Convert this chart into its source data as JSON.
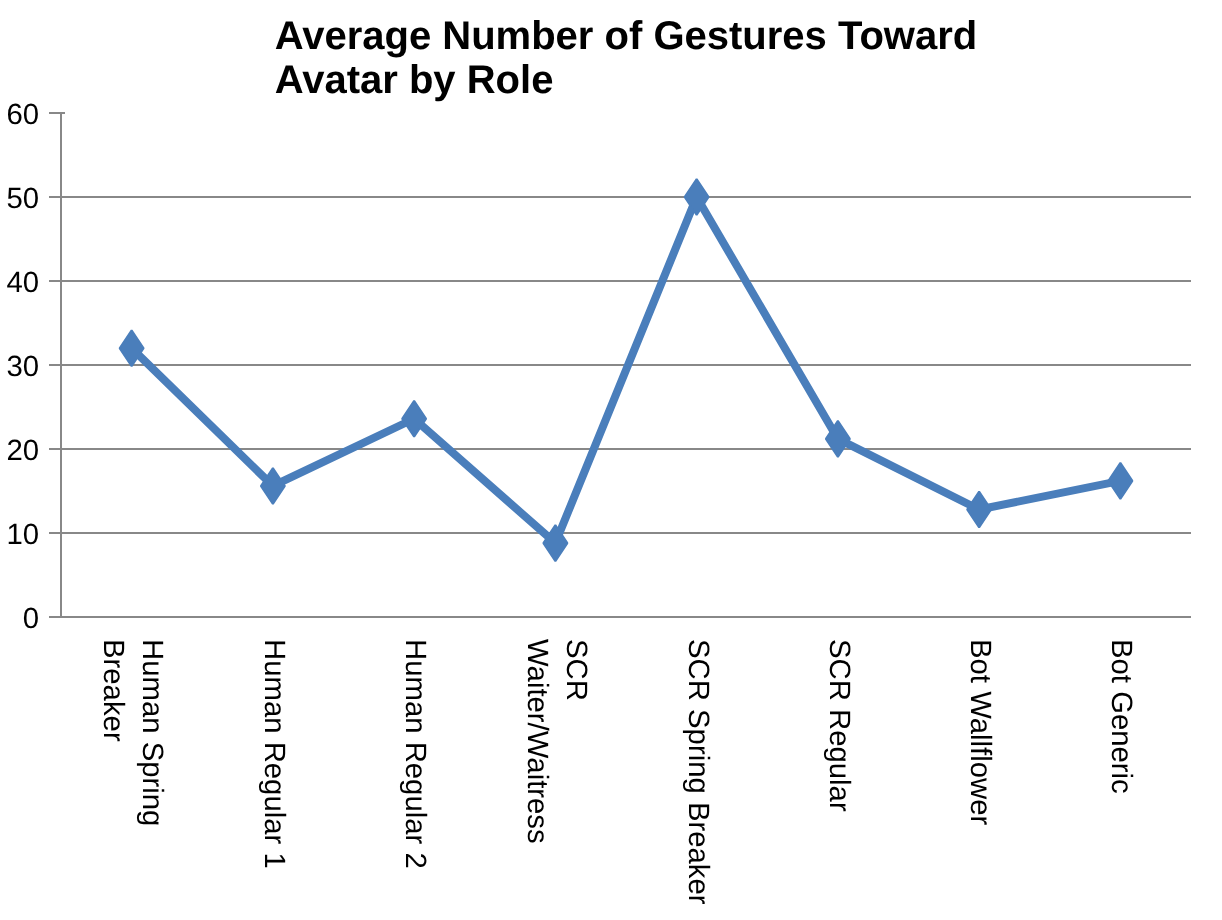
{
  "chart_data": {
    "type": "line",
    "title": "Average Number of Gestures Toward Avatar by Role",
    "categories": [
      "Human Spring Breaker",
      "Human Regular 1",
      "Human Regular 2",
      "SCR Waiter/Waitress",
      "SCR Spring Breaker",
      "SCR Regular",
      "Bot Wallflower",
      "Bot Generic"
    ],
    "series": [
      {
        "color": "#4a7ebb",
        "values": [
          32,
          15.6,
          23.6,
          8.8,
          50,
          21.2,
          12.8,
          16.2
        ]
      }
    ],
    "ylim": [
      0,
      60
    ],
    "yticks": [
      0,
      10,
      20,
      30,
      40,
      50,
      60
    ],
    "grid": "y",
    "marker": "diamond",
    "line_style": "solid"
  }
}
